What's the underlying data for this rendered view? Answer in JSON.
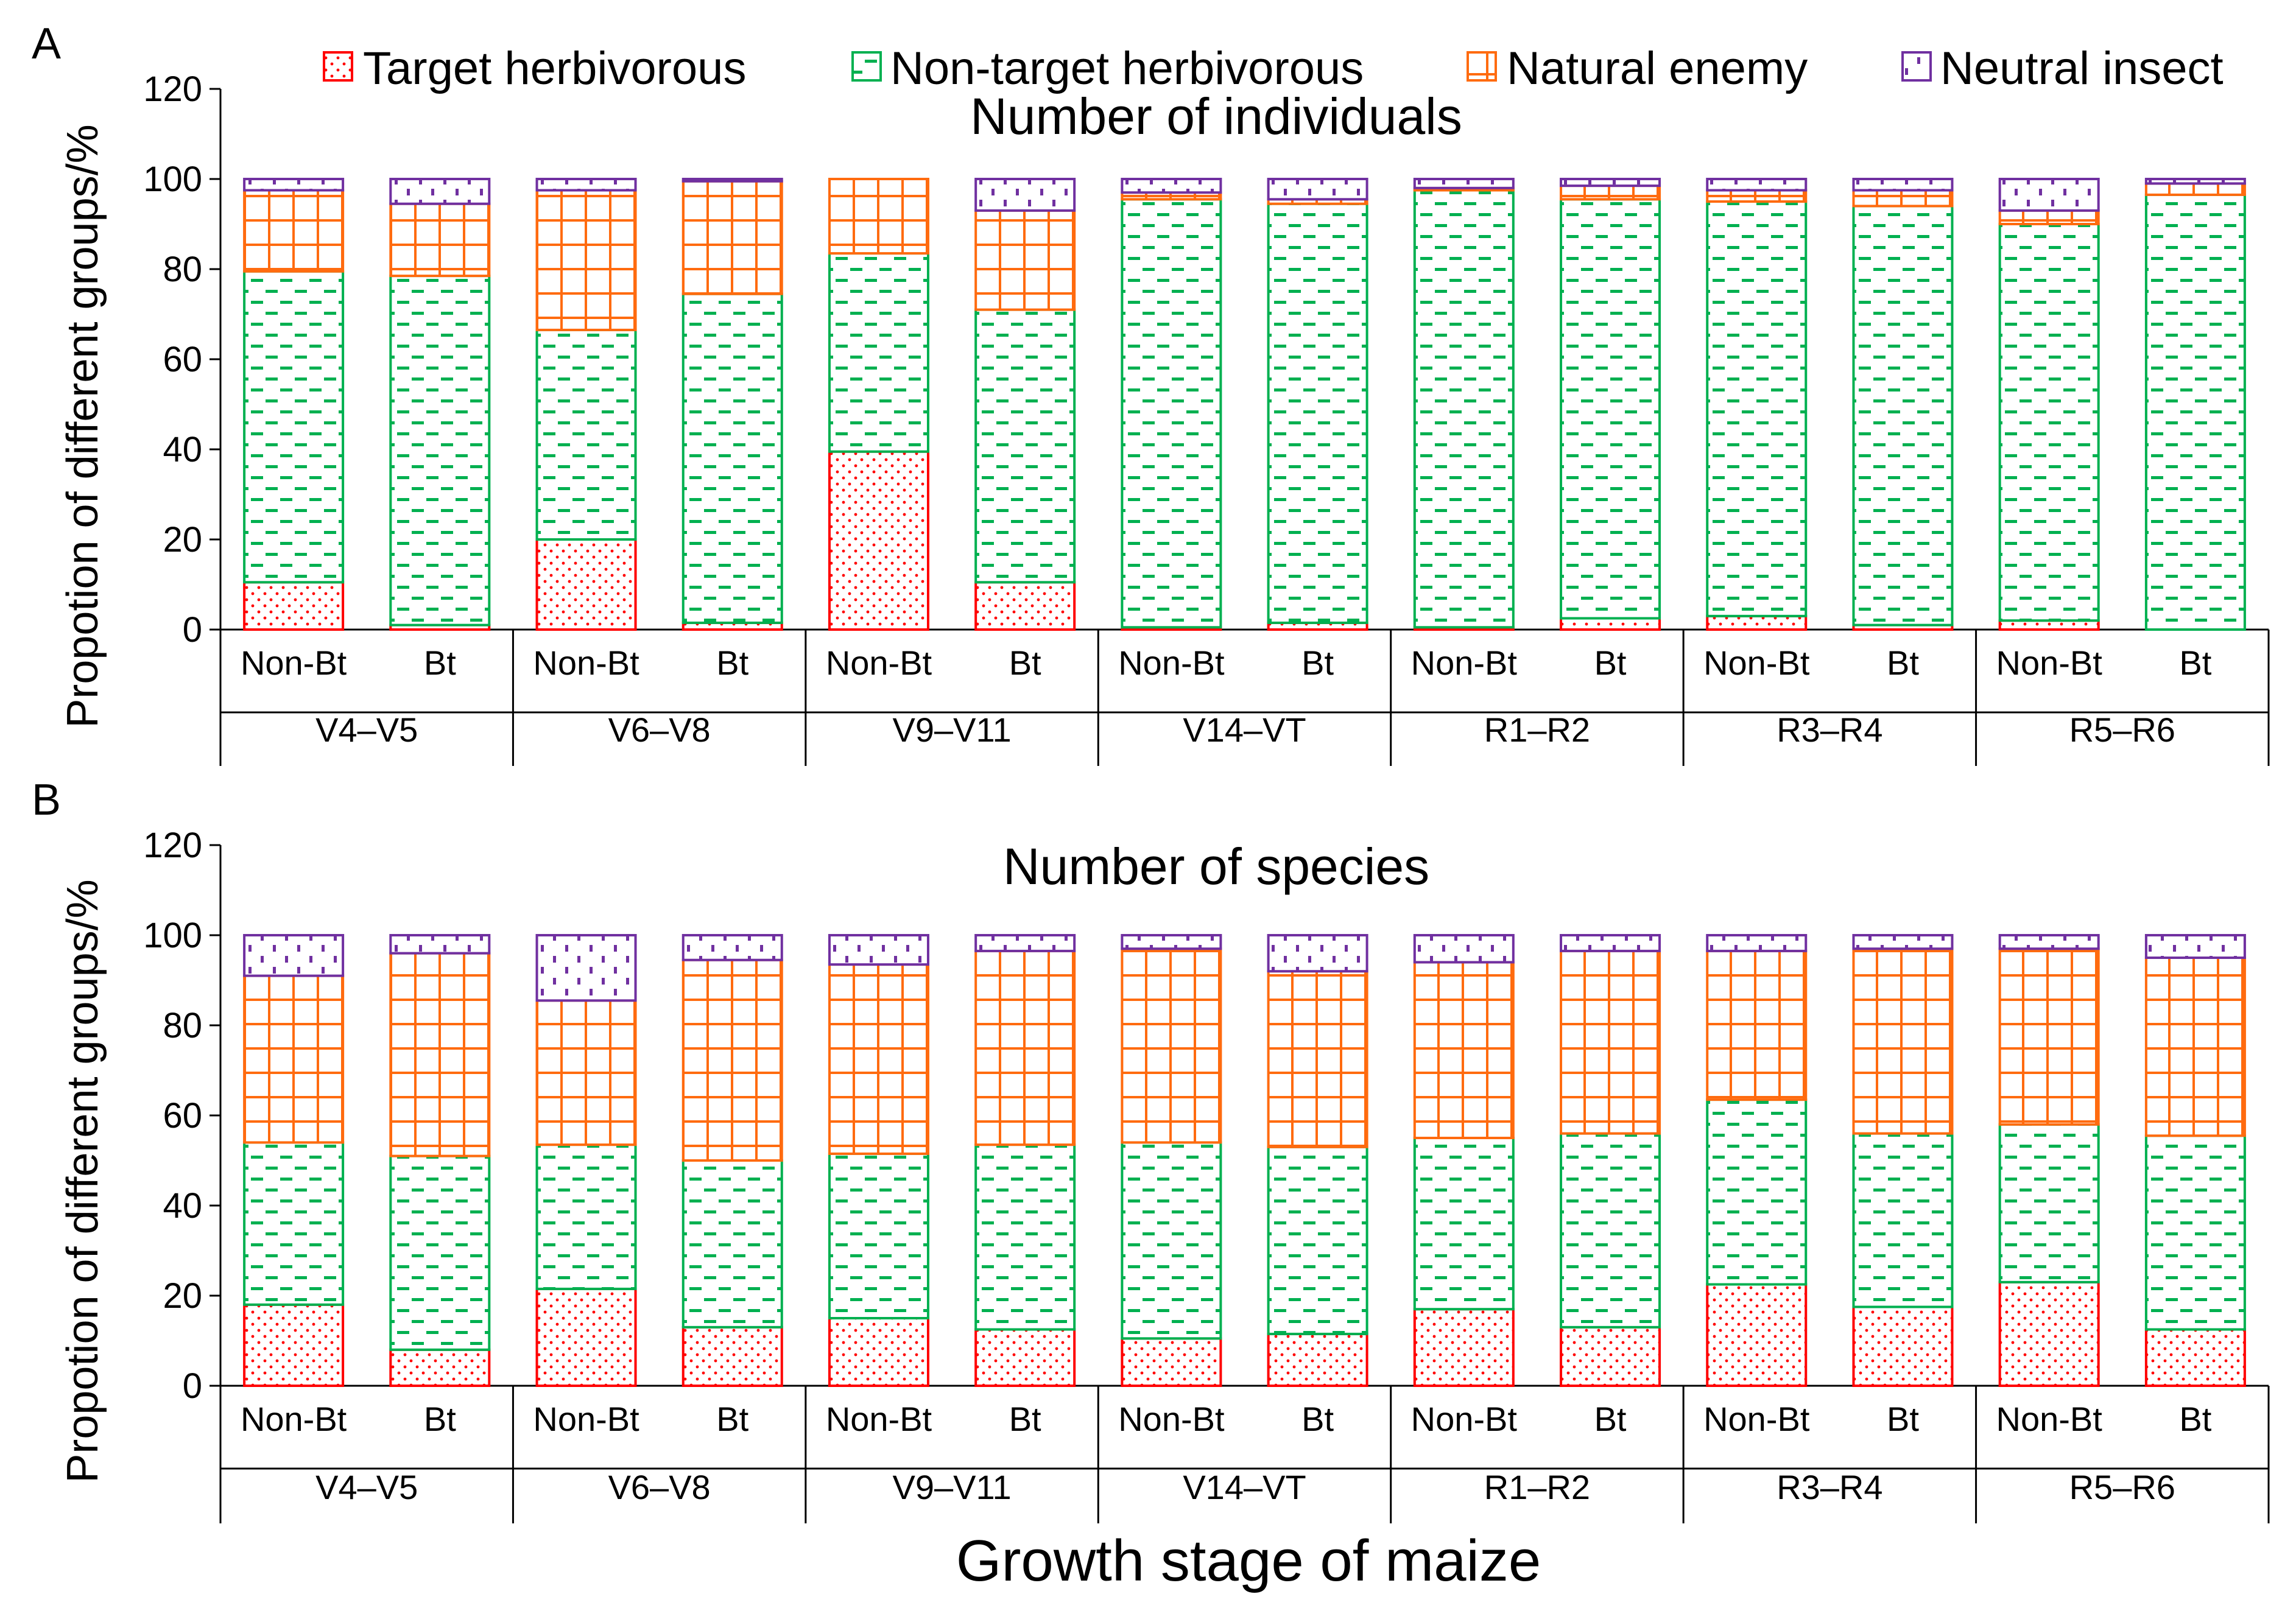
{
  "xlabel": "Growth stage of maize",
  "legend": [
    {
      "key": "target",
      "label": "Target herbivorous"
    },
    {
      "key": "nontarget",
      "label": "Non-target herbivorous"
    },
    {
      "key": "enemy",
      "label": "Natural enemy"
    },
    {
      "key": "neutral",
      "label": "Neutral insect"
    }
  ],
  "colors": {
    "target": "#ff0000",
    "nontarget": "#00b050",
    "enemy": "#ff6b0f",
    "neutral": "#7030a0",
    "axis": "#000000"
  },
  "chart_data": [
    {
      "type": "bar",
      "stacked": true,
      "panel": "A",
      "title": "Number of individuals",
      "ylabel": "Propotion of different groups/%",
      "ylim": [
        0,
        120
      ],
      "yticks": [
        0,
        20,
        40,
        60,
        80,
        100,
        120
      ],
      "groups": [
        "V4–V5",
        "V6–V8",
        "V9–V11",
        "V14–VT",
        "R1–R2",
        "R3–R4",
        "R5–R6"
      ],
      "categories": [
        "Non-Bt",
        "Bt",
        "Non-Bt",
        "Bt",
        "Non-Bt",
        "Bt",
        "Non-Bt",
        "Bt",
        "Non-Bt",
        "Bt",
        "Non-Bt",
        "Bt",
        "Non-Bt",
        "Bt"
      ],
      "series": [
        {
          "name": "Target herbivorous",
          "key": "target",
          "values": [
            10.5,
            1,
            20,
            1.5,
            39.5,
            10.5,
            0.5,
            1.5,
            0.5,
            2.5,
            3,
            1,
            2,
            0
          ]
        },
        {
          "name": "Non-target herbivorous",
          "key": "nontarget",
          "values": [
            69,
            77.5,
            46.5,
            73,
            44,
            60.5,
            95,
            93,
            97,
            93,
            92,
            93,
            88,
            96.5
          ]
        },
        {
          "name": "Natural enemy",
          "key": "enemy",
          "values": [
            18,
            16,
            31,
            25,
            16.5,
            22,
            1.5,
            1,
            0.5,
            3,
            2.5,
            3.5,
            3,
            2.5
          ]
        },
        {
          "name": "Neutral insect",
          "key": "neutral",
          "values": [
            2.5,
            5.5,
            2.5,
            0.5,
            0,
            7,
            3,
            4.5,
            2,
            1.5,
            2.5,
            2.5,
            7,
            1
          ]
        }
      ]
    },
    {
      "type": "bar",
      "stacked": true,
      "panel": "B",
      "title": "Number of species",
      "ylabel": "Propotion of different groups/%",
      "ylim": [
        0,
        120
      ],
      "yticks": [
        0,
        20,
        40,
        60,
        80,
        100,
        120
      ],
      "groups": [
        "V4–V5",
        "V6–V8",
        "V9–V11",
        "V14–VT",
        "R1–R2",
        "R3–R4",
        "R5–R6"
      ],
      "categories": [
        "Non-Bt",
        "Bt",
        "Non-Bt",
        "Bt",
        "Non-Bt",
        "Bt",
        "Non-Bt",
        "Bt",
        "Non-Bt",
        "Bt",
        "Non-Bt",
        "Bt",
        "Non-Bt",
        "Bt"
      ],
      "series": [
        {
          "name": "Target herbivorous",
          "key": "target",
          "values": [
            18,
            8,
            21.5,
            13,
            15,
            12.5,
            10.5,
            11.5,
            17,
            13,
            22.5,
            17.5,
            23,
            12.5
          ]
        },
        {
          "name": "Non-target herbivorous",
          "key": "nontarget",
          "values": [
            36,
            43,
            32,
            37,
            36.5,
            41,
            43.5,
            41.5,
            38,
            43,
            41,
            38.5,
            35,
            43
          ]
        },
        {
          "name": "Natural enemy",
          "key": "enemy",
          "values": [
            37,
            45,
            32,
            44.5,
            42,
            43,
            43,
            39,
            39,
            40.5,
            33,
            41,
            39,
            39.5
          ]
        },
        {
          "name": "Neutral insect",
          "key": "neutral",
          "values": [
            9,
            4,
            14.5,
            5.5,
            6.5,
            3.5,
            3,
            8,
            6,
            3.5,
            3.5,
            3,
            3,
            5
          ]
        }
      ]
    }
  ]
}
